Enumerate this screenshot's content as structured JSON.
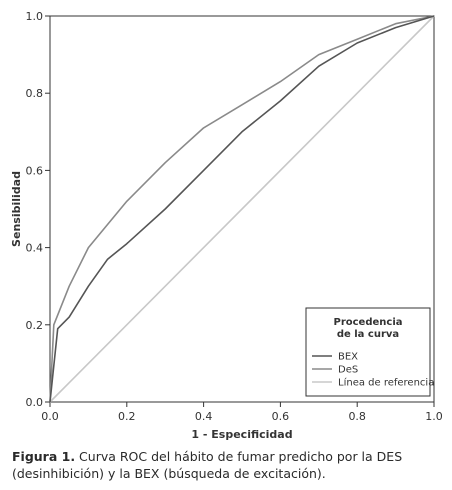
{
  "chart_data": {
    "type": "line",
    "xlabel": "1 - Especificidad",
    "ylabel": "Sensibilidad",
    "xlim": [
      0,
      1
    ],
    "ylim": [
      0,
      1
    ],
    "x_ticks": [
      "0.0",
      "0.2",
      "0.4",
      "0.6",
      "0.8",
      "1.0"
    ],
    "y_ticks": [
      "0.0",
      "0.2",
      "0.4",
      "0.6",
      "0.8",
      "1.0"
    ],
    "grid": false,
    "legend": {
      "title_line1": "Procedencia",
      "title_line2": "de la curva",
      "position": "bottom-right"
    },
    "series": [
      {
        "name": "BEX",
        "color": "#555555",
        "points": [
          [
            0,
            0
          ],
          [
            0.02,
            0.19
          ],
          [
            0.05,
            0.22
          ],
          [
            0.1,
            0.3
          ],
          [
            0.15,
            0.37
          ],
          [
            0.2,
            0.41
          ],
          [
            0.3,
            0.5
          ],
          [
            0.4,
            0.6
          ],
          [
            0.5,
            0.7
          ],
          [
            0.6,
            0.78
          ],
          [
            0.7,
            0.87
          ],
          [
            0.8,
            0.93
          ],
          [
            0.9,
            0.97
          ],
          [
            1,
            1
          ]
        ]
      },
      {
        "name": "DeS",
        "color": "#8a8a8a",
        "points": [
          [
            0,
            0
          ],
          [
            0.01,
            0.2
          ],
          [
            0.05,
            0.3
          ],
          [
            0.1,
            0.4
          ],
          [
            0.2,
            0.52
          ],
          [
            0.3,
            0.62
          ],
          [
            0.4,
            0.71
          ],
          [
            0.5,
            0.77
          ],
          [
            0.6,
            0.83
          ],
          [
            0.7,
            0.9
          ],
          [
            0.8,
            0.94
          ],
          [
            0.9,
            0.98
          ],
          [
            1,
            1
          ]
        ]
      },
      {
        "name": "Línea de referencia",
        "color": "#c8c8c8",
        "points": [
          [
            0,
            0
          ],
          [
            1,
            1
          ]
        ]
      }
    ]
  },
  "caption": {
    "label": "Figura 1.",
    "text": " Curva ROC del hábito de fumar predicho por la DES (desinhibición) y la BEX (búsqueda de excitación)."
  }
}
